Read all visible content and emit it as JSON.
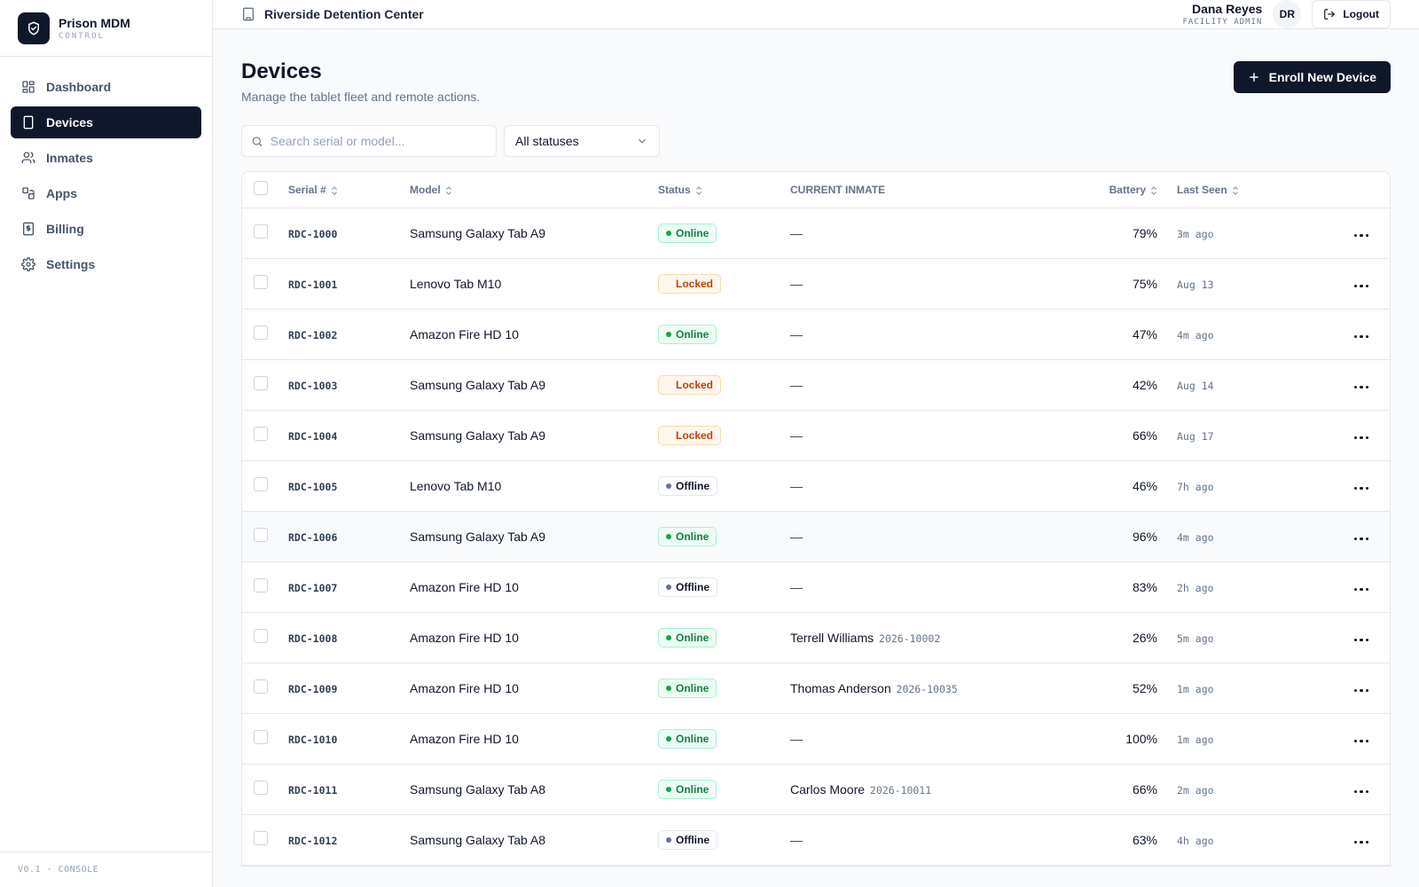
{
  "brand": {
    "name": "Prison MDM",
    "sub": "CONTROL"
  },
  "sidebar": {
    "items": [
      {
        "label": "Dashboard",
        "icon": "dashboard-icon"
      },
      {
        "label": "Devices",
        "icon": "tablet-icon",
        "active": true
      },
      {
        "label": "Inmates",
        "icon": "users-icon"
      },
      {
        "label": "Apps",
        "icon": "apps-icon"
      },
      {
        "label": "Billing",
        "icon": "receipt-icon"
      },
      {
        "label": "Settings",
        "icon": "gear-icon"
      }
    ],
    "footer": "V0.1 · CONSOLE"
  },
  "topbar": {
    "facility": "Riverside Detention Center",
    "user_name": "Dana Reyes",
    "user_role": "FACILITY ADMIN",
    "avatar": "DR",
    "logout_label": "Logout"
  },
  "page": {
    "title": "Devices",
    "subtitle": "Manage the tablet fleet and remote actions.",
    "enroll_label": "Enroll New Device"
  },
  "filters": {
    "search_placeholder": "Search serial or model...",
    "status_selected": "All statuses"
  },
  "table": {
    "columns": {
      "serial": "Serial #",
      "model": "Model",
      "status": "Status",
      "inmate": "CURRENT INMATE",
      "battery": "Battery",
      "last_seen": "Last Seen"
    },
    "rows": [
      {
        "serial": "RDC-1000",
        "model": "Samsung Galaxy Tab A9",
        "status": "Online",
        "inmate": "—",
        "inmate_id": "",
        "battery": "79%",
        "last_seen": "3m ago"
      },
      {
        "serial": "RDC-1001",
        "model": "Lenovo Tab M10",
        "status": "Locked",
        "inmate": "—",
        "inmate_id": "",
        "battery": "75%",
        "last_seen": "Aug 13"
      },
      {
        "serial": "RDC-1002",
        "model": "Amazon Fire HD 10",
        "status": "Online",
        "inmate": "—",
        "inmate_id": "",
        "battery": "47%",
        "last_seen": "4m ago"
      },
      {
        "serial": "RDC-1003",
        "model": "Samsung Galaxy Tab A9",
        "status": "Locked",
        "inmate": "—",
        "inmate_id": "",
        "battery": "42%",
        "last_seen": "Aug 14"
      },
      {
        "serial": "RDC-1004",
        "model": "Samsung Galaxy Tab A9",
        "status": "Locked",
        "inmate": "—",
        "inmate_id": "",
        "battery": "66%",
        "last_seen": "Aug 17"
      },
      {
        "serial": "RDC-1005",
        "model": "Lenovo Tab M10",
        "status": "Offline",
        "inmate": "—",
        "inmate_id": "",
        "battery": "46%",
        "last_seen": "7h ago"
      },
      {
        "serial": "RDC-1006",
        "model": "Samsung Galaxy Tab A9",
        "status": "Online",
        "inmate": "—",
        "inmate_id": "",
        "battery": "96%",
        "last_seen": "4m ago"
      },
      {
        "serial": "RDC-1007",
        "model": "Amazon Fire HD 10",
        "status": "Offline",
        "inmate": "—",
        "inmate_id": "",
        "battery": "83%",
        "last_seen": "2h ago"
      },
      {
        "serial": "RDC-1008",
        "model": "Amazon Fire HD 10",
        "status": "Online",
        "inmate": "Terrell Williams",
        "inmate_id": "2026-10002",
        "battery": "26%",
        "last_seen": "5m ago"
      },
      {
        "serial": "RDC-1009",
        "model": "Amazon Fire HD 10",
        "status": "Online",
        "inmate": "Thomas Anderson",
        "inmate_id": "2026-10035",
        "battery": "52%",
        "last_seen": "1m ago"
      },
      {
        "serial": "RDC-1010",
        "model": "Amazon Fire HD 10",
        "status": "Online",
        "inmate": "—",
        "inmate_id": "",
        "battery": "100%",
        "last_seen": "1m ago"
      },
      {
        "serial": "RDC-1011",
        "model": "Samsung Galaxy Tab A8",
        "status": "Online",
        "inmate": "Carlos Moore",
        "inmate_id": "2026-10011",
        "battery": "66%",
        "last_seen": "2m ago"
      },
      {
        "serial": "RDC-1012",
        "model": "Samsung Galaxy Tab A8",
        "status": "Offline",
        "inmate": "—",
        "inmate_id": "",
        "battery": "63%",
        "last_seen": "4h ago"
      }
    ]
  },
  "colors": {
    "primary": "#0f172a",
    "online": "#16a34a",
    "locked": "#c2410c",
    "offline": "#64748b"
  }
}
